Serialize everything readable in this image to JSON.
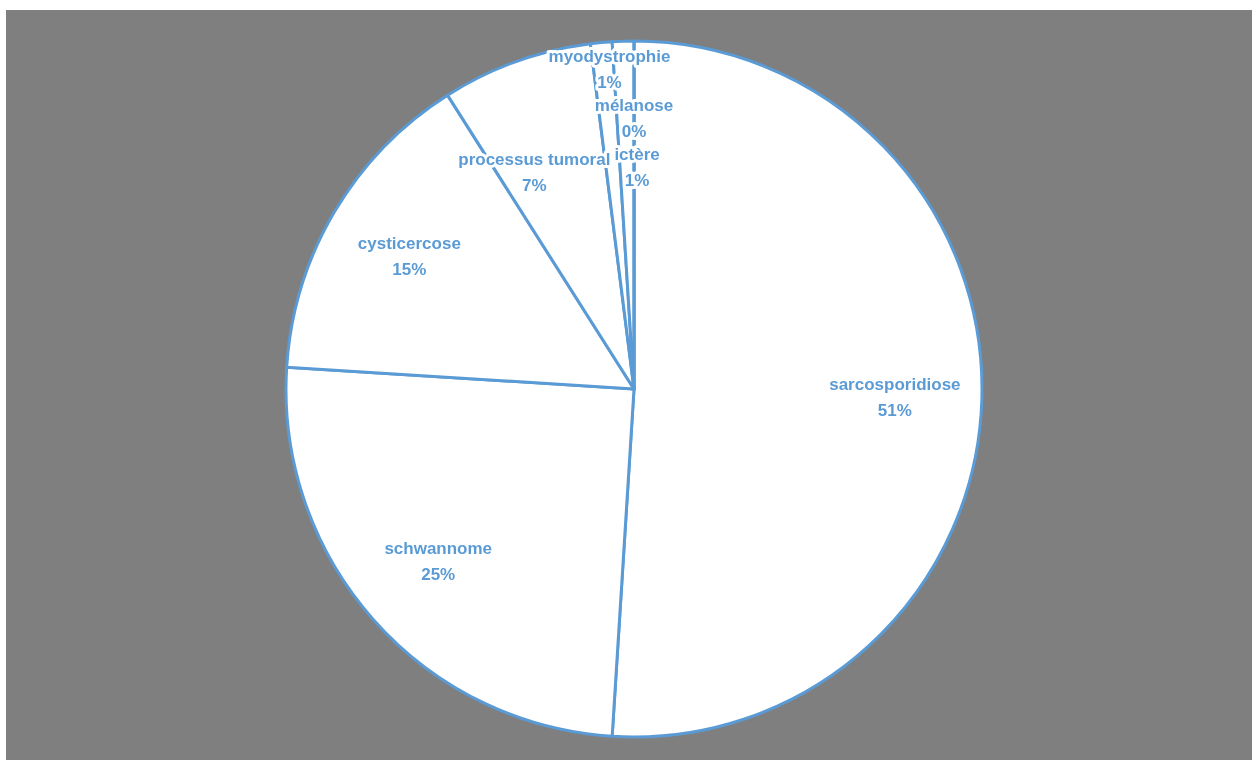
{
  "chart_data": {
    "type": "pie",
    "categories": [
      "sarcosporidiose",
      "schwannome",
      "cysticercose",
      "processus tumoral",
      "myodystrophie",
      "ictère",
      "mélanose"
    ],
    "values": [
      51,
      25,
      15,
      7,
      1,
      1,
      0
    ],
    "colors": [
      "#ffffff",
      "#ffffff",
      "#ffffff",
      "#ffffff",
      "#ffffff",
      "#ffffff",
      "#ffffff"
    ],
    "value_labels": [
      "51%",
      "25%",
      "15%",
      "7%",
      "1%",
      "1%",
      "0%"
    ]
  }
}
